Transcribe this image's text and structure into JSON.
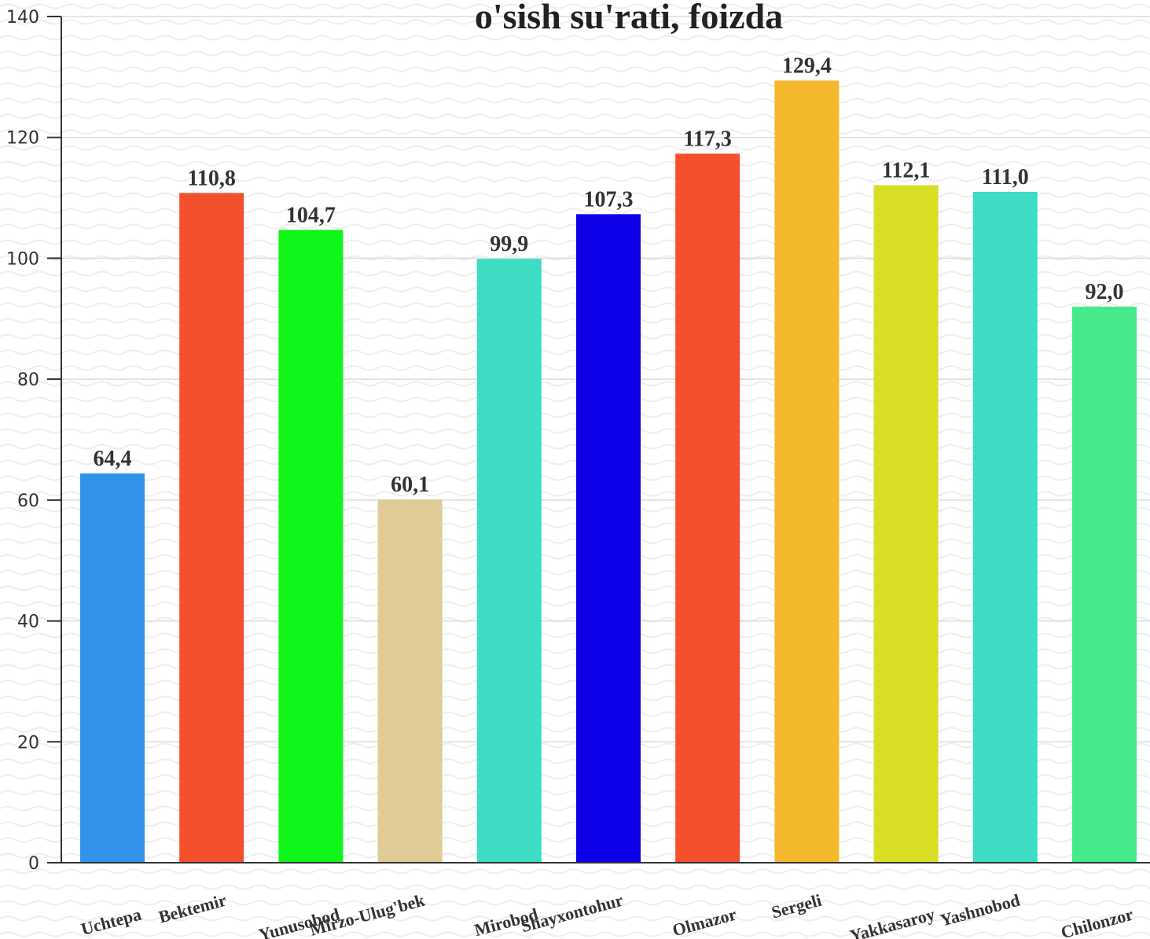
{
  "title": "o'sish su'rati, foizda",
  "colors": {
    "background": "#ffffff",
    "wave": "#eeeeee",
    "grid": "#dcdcdc",
    "axis": "#333333"
  },
  "chart_data": {
    "type": "bar",
    "title": "o'sish su'rati, foizda",
    "xlabel": "",
    "ylabel": "",
    "ylim": [
      0,
      140
    ],
    "yticks": [
      0,
      20,
      40,
      60,
      80,
      100,
      120,
      140
    ],
    "grid": true,
    "legend": "none",
    "categories": [
      "Uchtepa",
      "Bektemir",
      "Yunusobod",
      "Mirzo-Ulug'bek",
      "Mirobod",
      "Shayxontohur",
      "Olmazor",
      "Sergeli",
      "Yakkasaroy",
      "Yashnobod",
      "Chilonzor"
    ],
    "values": [
      64.4,
      110.8,
      104.7,
      60.1,
      99.9,
      107.3,
      117.3,
      129.4,
      112.1,
      111.0,
      92.0
    ],
    "value_labels": [
      "64,4",
      "110,8",
      "104,7",
      "60,1",
      "99,9",
      "107,3",
      "117,3",
      "129,4",
      "112,1",
      "111,0",
      "92,0"
    ],
    "bar_colors": [
      "#3194ea",
      "#f4502d",
      "#10f51a",
      "#decb95",
      "#3ddcc3",
      "#1000ea",
      "#f4502d",
      "#f4b82d",
      "#d8de24",
      "#3ddcc3",
      "#45ea8b"
    ]
  }
}
